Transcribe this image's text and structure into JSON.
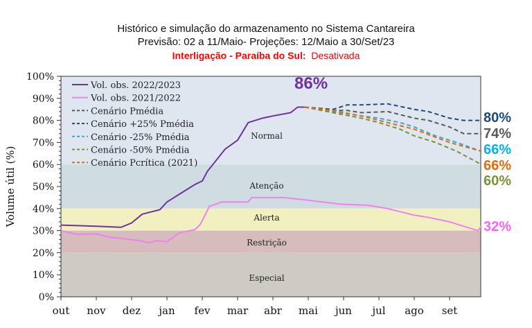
{
  "chart_data": {
    "type": "line",
    "title": "Histórico e simulação do armazenamento no Sistema Cantareira",
    "subtitle": "Previsão: 02 a 11/Maio- Projeções: 12/Maio a 30/Set/23",
    "note_label": "Interligação - Paraíba do Sul:",
    "note_value": "Desativada",
    "ylabel": "Volume útil (%)",
    "xlabel": "",
    "ylim": [
      0,
      100
    ],
    "xlim": [
      0,
      11.9
    ],
    "x_unit": "months since 1 Oct",
    "yticks": [
      "0%",
      "10%",
      "20%",
      "30%",
      "40%",
      "50%",
      "60%",
      "70%",
      "80%",
      "90%",
      "100%"
    ],
    "xticks": [
      "out",
      "nov",
      "dez",
      "jan",
      "fev",
      "mar",
      "abr",
      "mai",
      "jun",
      "jul",
      "ago",
      "set"
    ],
    "bands": [
      {
        "name": "Normal",
        "from": 60,
        "to": 100,
        "color": "#dfe6f0"
      },
      {
        "name": "Atenção",
        "from": 40,
        "to": 60,
        "color": "#cfdde3"
      },
      {
        "name": "Alerta",
        "from": 30,
        "to": 40,
        "color": "#f2f0c0"
      },
      {
        "name": "Restrição",
        "from": 20,
        "to": 30,
        "color": "#d6bcbc"
      },
      {
        "name": "Especial",
        "from": 0,
        "to": 20,
        "color": "#cecbc5"
      }
    ],
    "legend_position": "top-left",
    "series": [
      {
        "name": "Vol. obs. 2022/2023",
        "color": "#7030a0",
        "dash": false,
        "x": [
          0,
          1,
          1.7,
          2,
          2.3,
          2.8,
          3,
          3.4,
          3.8,
          4,
          4.15,
          4.35,
          4.65,
          5,
          5.3,
          5.7,
          6,
          6.5,
          6.7,
          6.9
        ],
        "y": [
          32.5,
          32,
          31.5,
          33.5,
          37.5,
          39.5,
          43,
          47,
          51,
          52.5,
          57,
          61,
          67,
          71,
          79,
          81,
          82,
          83.5,
          86,
          86
        ]
      },
      {
        "name": "Vol. obs. 2021/2022",
        "color": "#ee82ee",
        "dash": false,
        "x": [
          0,
          0.45,
          1,
          1.4,
          1.7,
          2.2,
          2.5,
          2.7,
          3,
          3.35,
          3.8,
          3.95,
          4.2,
          4.55,
          5.3,
          5.4,
          6.3,
          6.9,
          7.9,
          8.7,
          9.25,
          10,
          10.4,
          11,
          11.8,
          11.9
        ],
        "y": [
          30,
          28.3,
          28.5,
          27,
          26.5,
          25.5,
          24.5,
          25.5,
          25,
          29,
          30.5,
          33,
          41,
          43,
          43,
          45,
          45,
          44,
          42,
          41.5,
          40,
          37,
          36,
          34,
          30,
          32
        ]
      },
      {
        "name": "Cenário Pmédia",
        "color": "#555a60",
        "dash": true,
        "x": [
          6.9,
          7.7,
          8.1,
          8.5,
          9.25,
          10,
          10.4,
          11,
          11.4,
          11.9
        ],
        "y": [
          86,
          84.5,
          84.5,
          83.5,
          84,
          81,
          80,
          77,
          74,
          74
        ]
      },
      {
        "name": "Cenário +25% Pmédia",
        "color": "#1f497d",
        "dash": true,
        "x": [
          6.9,
          7.7,
          8.1,
          8.5,
          9.25,
          10,
          10.4,
          11,
          11.4,
          11.9
        ],
        "y": [
          86,
          85,
          87,
          87,
          87.5,
          85,
          84,
          81,
          80,
          80
        ]
      },
      {
        "name": "Cenário -25% Pmédia",
        "color": "#3aa6d8",
        "dash": true,
        "x": [
          6.9,
          7.7,
          8.5,
          9,
          9.6,
          10,
          10.6,
          11.2,
          11.9
        ],
        "y": [
          86,
          84,
          82,
          81,
          79,
          77,
          73,
          70,
          66
        ]
      },
      {
        "name": "Cenário -50% Pmédia",
        "color": "#77933c",
        "dash": true,
        "x": [
          6.9,
          7.7,
          8.5,
          9,
          9.6,
          10,
          10.6,
          11.2,
          11.9
        ],
        "y": [
          86,
          83.5,
          81,
          79,
          76,
          73,
          70,
          66,
          60
        ]
      },
      {
        "name": "Cenário Pcrítica (2021)",
        "color": "#e36c0a",
        "dash": true,
        "x": [
          6.9,
          7.7,
          8.5,
          9,
          9.5,
          10,
          10.5,
          11,
          11.9
        ],
        "y": [
          86,
          84.5,
          82,
          80,
          78,
          76,
          73,
          70,
          66
        ]
      }
    ],
    "annotations": [
      {
        "text": "86%",
        "color": "#7030a0"
      },
      {
        "text": "80%",
        "color": "#1f497d"
      },
      {
        "text": "74%",
        "color": "#595959"
      },
      {
        "text": "66%",
        "color": "#00b0f0"
      },
      {
        "text": "66%",
        "color": "#e36c0a"
      },
      {
        "text": "60%",
        "color": "#77933c"
      },
      {
        "text": "32%",
        "color": "#ff66ff"
      }
    ]
  }
}
